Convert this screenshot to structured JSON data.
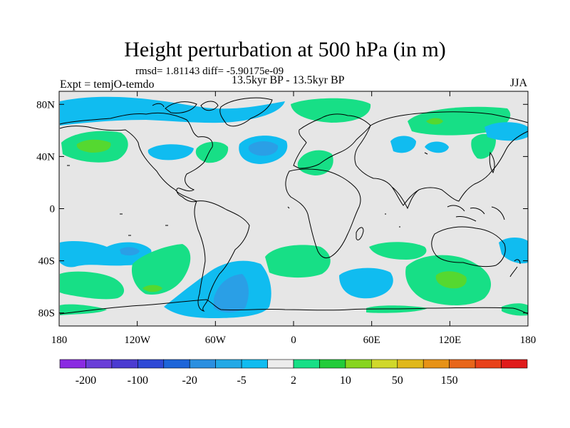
{
  "title": "Height perturbation at 500 hPa (in m)",
  "stats": "rmsd= 1.81143 diff= -5.90175e-09",
  "left_label": "Expt = temjO-temdo",
  "center_label": "13.5kyr BP - 13.5kyr BP",
  "right_label": "JJA",
  "axes": {
    "x_ticks": [
      {
        "lon": -180,
        "label": "180"
      },
      {
        "lon": -120,
        "label": "120W"
      },
      {
        "lon": -60,
        "label": "60W"
      },
      {
        "lon": 0,
        "label": "0"
      },
      {
        "lon": 60,
        "label": "60E"
      },
      {
        "lon": 120,
        "label": "120E"
      },
      {
        "lon": 180,
        "label": "180"
      }
    ],
    "y_ticks": [
      {
        "lat": 80,
        "label": "80N"
      },
      {
        "lat": 40,
        "label": "40N"
      },
      {
        "lat": 0,
        "label": "0"
      },
      {
        "lat": -40,
        "label": "40S"
      },
      {
        "lat": -80,
        "label": "80S"
      }
    ],
    "lon_range": [
      -180,
      180
    ],
    "lat_range": [
      -90,
      90
    ]
  },
  "colorbar": {
    "colors": [
      "#8a2be2",
      "#6a3fd8",
      "#4b3bd1",
      "#2f49d6",
      "#1d65d9",
      "#2a8fe0",
      "#22a9e6",
      "#10bcf0",
      "#ececec",
      "#17df86",
      "#22cc3a",
      "#87d51e",
      "#d0d82a",
      "#e0b81a",
      "#e79216",
      "#e8661a",
      "#e8411a",
      "#e01b1b"
    ],
    "labels": [
      {
        "value": "-200",
        "boundary": 1
      },
      {
        "value": "-100",
        "boundary": 3
      },
      {
        "value": "-20",
        "boundary": 5
      },
      {
        "value": "-5",
        "boundary": 7
      },
      {
        "value": "2",
        "boundary": 9
      },
      {
        "value": "10",
        "boundary": 11
      },
      {
        "value": "50",
        "boundary": 13
      },
      {
        "value": "150",
        "boundary": 15
      }
    ]
  },
  "field_colors": {
    "background": "#e6e6e6",
    "negative_light": "#10bcf0",
    "negative_mid": "#2a9fe6",
    "positive_light": "#17df86",
    "positive_mid": "#55d830",
    "coast": "#000000"
  }
}
